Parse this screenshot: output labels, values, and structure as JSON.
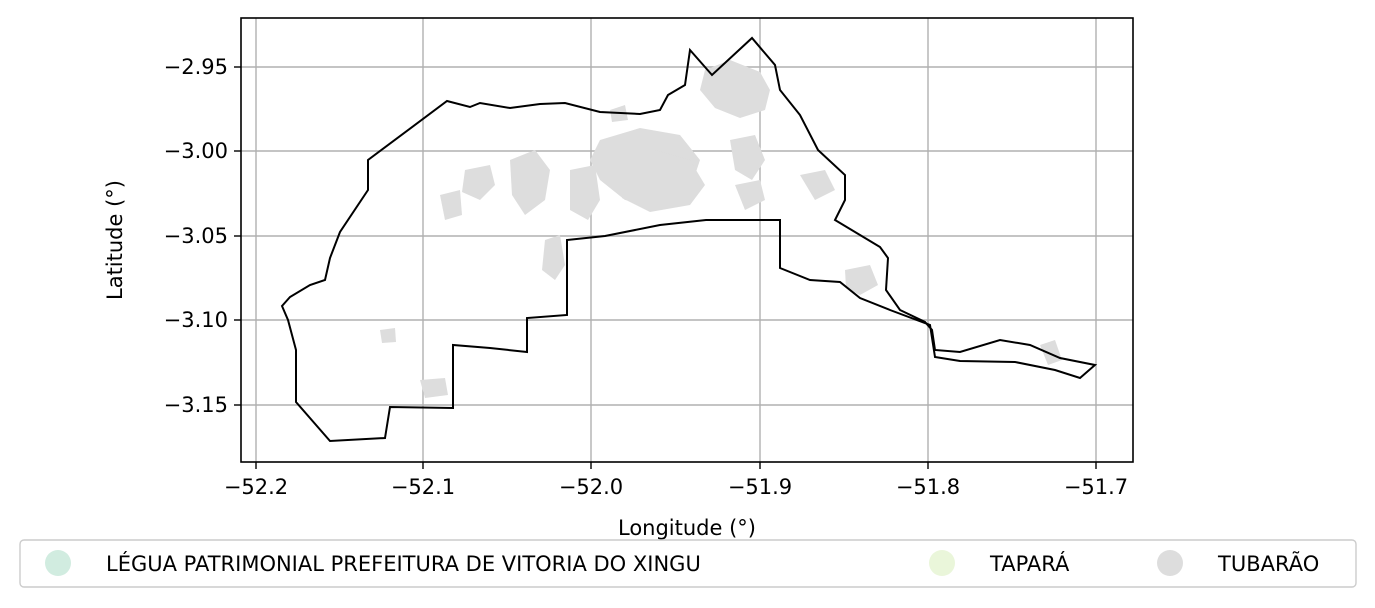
{
  "map": {
    "xlabel": "Longitude (°)",
    "ylabel": "Latitude (°)",
    "grid": true,
    "legend_position": "bottom",
    "x_ticks": [
      "−52.2",
      "−52.1",
      "−52.0",
      "−51.9",
      "−51.8",
      "−51.7"
    ],
    "y_ticks": [
      "−2.95",
      "−3.00",
      "−3.05",
      "−3.10",
      "−3.15"
    ],
    "xlim": [
      -52.209,
      -51.678
    ],
    "ylim": [
      -3.184,
      -2.921
    ],
    "boundary_color": "#000000",
    "legend": [
      {
        "label": "LÉGUA PATRIMONIAL PREFEITURA DE VITORIA DO XINGU",
        "color": "#d1ece0"
      },
      {
        "label": "TAPARÁ",
        "color": "#eaf6da"
      },
      {
        "label": "TUBARÃO",
        "color": "#dddddd"
      }
    ],
    "fill_color": "#dddddd"
  }
}
